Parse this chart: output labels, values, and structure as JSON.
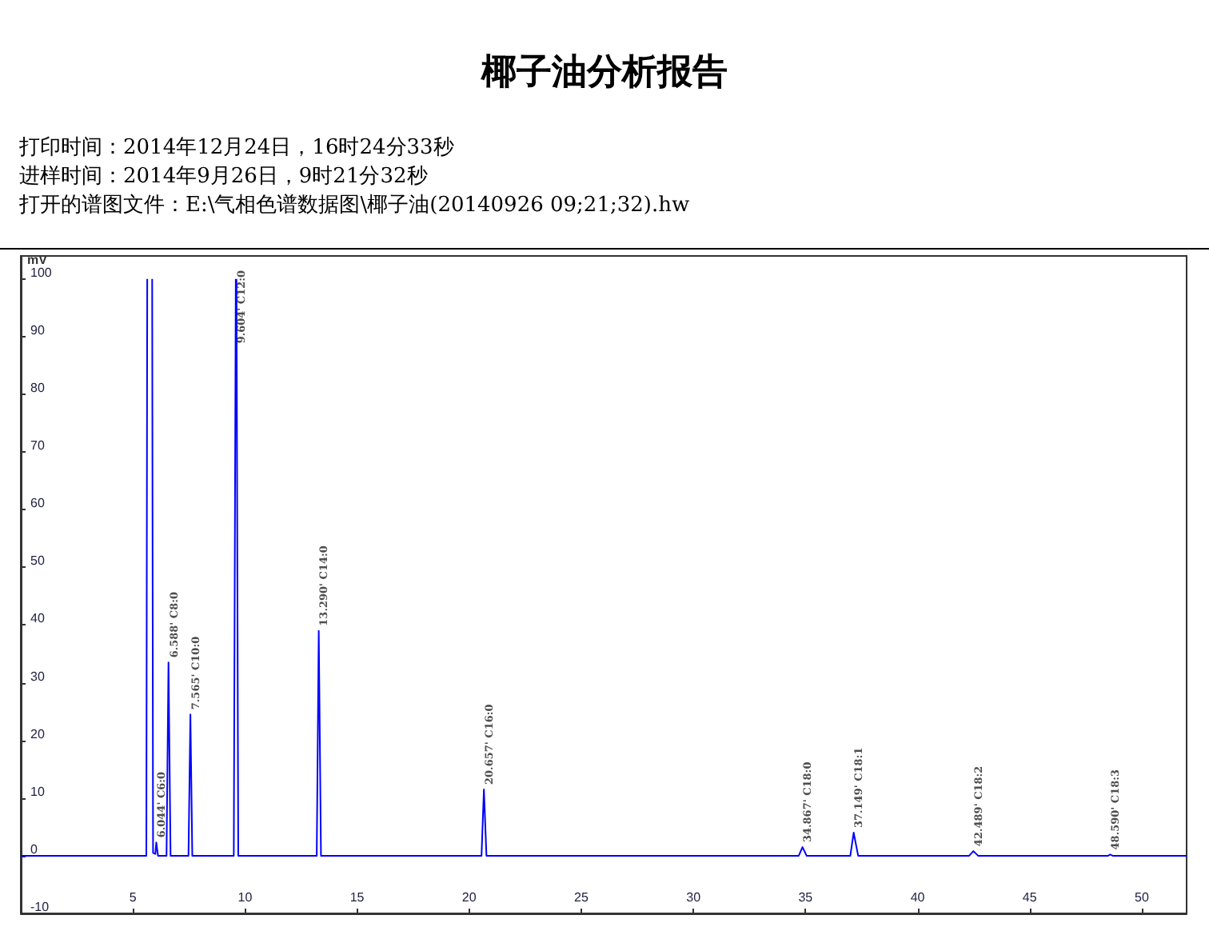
{
  "chart_data": {
    "type": "line",
    "title": "椰子油分析报告",
    "annotations": [
      "打印时间：2014年12月24日，16时24分33秒",
      "进样时间：2014年9月26日，9时21分32秒",
      "打开的谱图文件：E:\\气相色谱数据图\\椰子油(20140926 09;21;32).hw",
      {
        "text": "6.044' C6:0",
        "x": 6.044,
        "y": 2.3
      },
      {
        "text": "6.588' C8:0",
        "x": 6.588,
        "y": 33.5
      },
      {
        "text": "7.565' C10:0",
        "x": 7.565,
        "y": 24.5
      },
      {
        "text": "9.604' C12:0",
        "x": 9.604,
        "y": 88
      },
      {
        "text": "13.290' C14:0",
        "x": 13.29,
        "y": 39
      },
      {
        "text": "20.657' C16:0",
        "x": 20.657,
        "y": 11.5
      },
      {
        "text": "34.867' C18:0",
        "x": 34.867,
        "y": 1.5
      },
      {
        "text": "37.149' C18:1",
        "x": 37.149,
        "y": 4
      },
      {
        "text": "42.489' C18:2",
        "x": 42.489,
        "y": 0.8
      },
      {
        "text": "48.590' C18:3",
        "x": 48.59,
        "y": 0.2
      }
    ],
    "ylabel": "mV",
    "x": [
      0,
      5.6,
      5.64,
      5.75,
      5.86,
      5.9,
      6.0,
      6.044,
      6.12,
      6.5,
      6.588,
      6.68,
      7.48,
      7.565,
      7.65,
      9.5,
      9.59,
      9.604,
      9.62,
      9.7,
      13.2,
      13.29,
      13.39,
      20.55,
      20.657,
      20.77,
      34.7,
      34.867,
      35.05,
      37.0,
      37.149,
      37.35,
      42.3,
      42.489,
      42.7,
      48.5,
      48.59,
      48.7,
      52
    ],
    "series": [
      {
        "color": "#0000ff",
        "values": [
          0,
          0,
          100,
          null,
          100,
          0.5,
          0.3,
          2.3,
          0,
          0,
          33.5,
          0,
          0,
          24.5,
          0,
          0,
          100,
          null,
          100,
          0,
          0,
          39,
          0,
          0,
          11.5,
          0,
          0,
          1.5,
          0,
          0,
          4,
          0,
          0,
          0.8,
          0,
          0,
          0.2,
          0,
          0
        ]
      }
    ],
    "xlim": [
      0,
      52
    ],
    "xticks": [
      5,
      10,
      15,
      20,
      25,
      30,
      35,
      40,
      45,
      50
    ],
    "ylim": [
      -10,
      104
    ],
    "yticks": [
      -10,
      0,
      10,
      20,
      30,
      40,
      50,
      60,
      70,
      80,
      90,
      100
    ],
    "grid": false,
    "marker": "none",
    "line_style": "solid"
  }
}
